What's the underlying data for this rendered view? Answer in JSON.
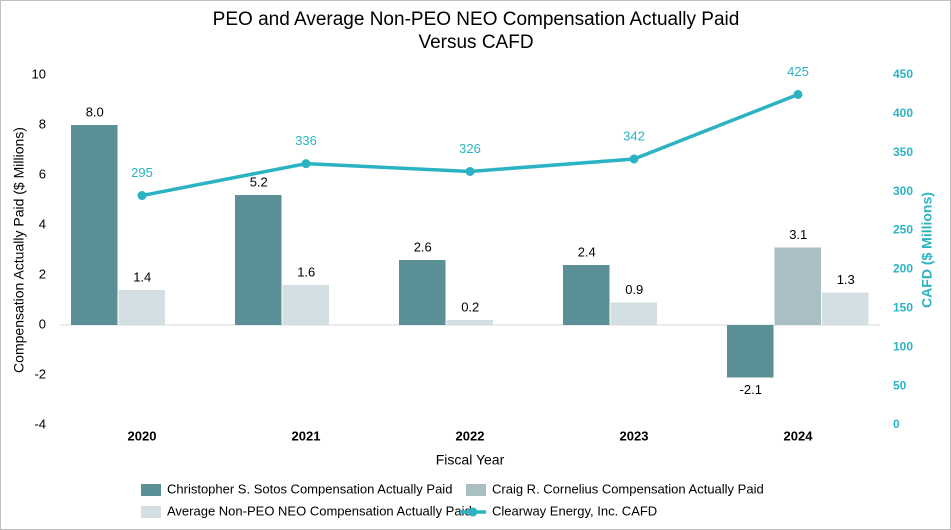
{
  "chart_data": {
    "type": "bar-line",
    "title": [
      "PEO and Average Non-PEO NEO Compensation Actually Paid",
      "Versus CAFD"
    ],
    "x_label": "Fiscal Year",
    "y_label": "Compensation Actually Paid ($ Millions)",
    "y2_label": "CAFD ($ Millions)",
    "categories": [
      "2020",
      "2021",
      "2022",
      "2023",
      "2024"
    ],
    "series": [
      {
        "name": "Christopher S. Sotos Compensation Actually Paid",
        "type": "bar",
        "color": "#5b8f96",
        "values": [
          8.0,
          5.2,
          2.6,
          2.4,
          -2.1
        ],
        "value_labels": [
          "8.0",
          "5.2",
          "2.6",
          "2.4",
          "-2.1"
        ]
      },
      {
        "name": "Craig R. Cornelius Compensation Actually Paid",
        "type": "bar",
        "color": "#aabfc3",
        "values": [
          null,
          null,
          null,
          null,
          3.1
        ]
      },
      {
        "name": "Average Non-PEO NEO Compensation Actually Paid",
        "type": "bar",
        "color": "#d3dfe2",
        "values": [
          1.4,
          1.6,
          0.2,
          0.9,
          1.3
        ]
      },
      {
        "name": "Clearway Energy, Inc. CAFD",
        "type": "line",
        "axis": "y2",
        "color": "#2bb3c4",
        "values": [
          295,
          336,
          326,
          342,
          425
        ]
      }
    ],
    "ylim": [
      -4,
      10
    ],
    "yticks": [
      -4,
      -2,
      0,
      2,
      4,
      6,
      8,
      10
    ],
    "y2lim": [
      0,
      450
    ],
    "y2ticks": [
      0,
      50,
      100,
      150,
      200,
      250,
      300,
      350,
      400,
      450
    ],
    "grid": false
  }
}
